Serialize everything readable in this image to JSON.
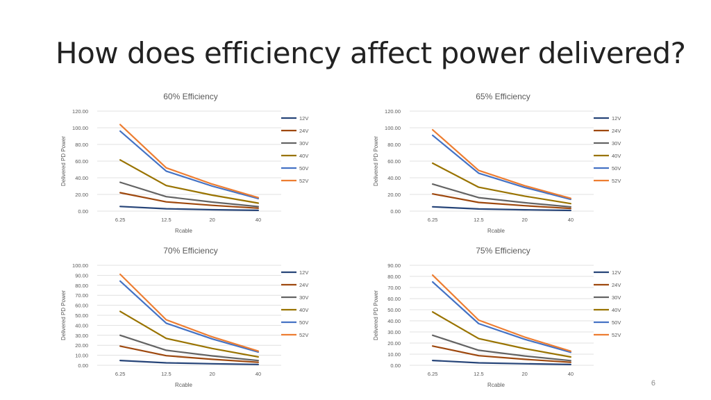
{
  "slide": {
    "title": "How does efficiency affect power delivered?",
    "page_number": "6"
  },
  "chart_data": [
    {
      "type": "line",
      "title": "60% Efficiency",
      "xlabel": "Rcable",
      "ylabel": "Delivered PD Power",
      "categories": [
        "6.25",
        "12.5",
        "20",
        "40"
      ],
      "ylim": [
        0,
        120
      ],
      "ytick_step": 20,
      "ytick_labels": [
        "0.00",
        "20.00",
        "40.00",
        "60.00",
        "80.00",
        "100.00",
        "120.00"
      ],
      "grid": true,
      "legend": "right",
      "series": [
        {
          "name": "12V",
          "color": "#264478",
          "values": [
            5.6,
            2.8,
            1.7,
            0.9
          ]
        },
        {
          "name": "24V",
          "color": "#9E480E",
          "values": [
            22.1,
            11.1,
            6.9,
            3.5
          ]
        },
        {
          "name": "30V",
          "color": "#636363",
          "values": [
            34.6,
            17.3,
            10.8,
            5.4
          ]
        },
        {
          "name": "40V",
          "color": "#997300",
          "values": [
            61.4,
            30.7,
            19.2,
            9.6
          ]
        },
        {
          "name": "50V",
          "color": "#4472C4",
          "values": [
            96.0,
            48.0,
            30.0,
            15.0
          ]
        },
        {
          "name": "52V",
          "color": "#ED7D31",
          "values": [
            103.8,
            51.9,
            32.4,
            16.2
          ]
        }
      ]
    },
    {
      "type": "line",
      "title": "65% Efficiency",
      "xlabel": "Rcable",
      "ylabel": "Delivered PD Power",
      "categories": [
        "6.25",
        "12.5",
        "20",
        "40"
      ],
      "ylim": [
        0,
        120
      ],
      "ytick_step": 20,
      "ytick_labels": [
        "0.00",
        "20.00",
        "40.00",
        "60.00",
        "80.00",
        "100.00",
        "120.00"
      ],
      "grid": true,
      "legend": "right",
      "series": [
        {
          "name": "12V",
          "color": "#264478",
          "values": [
            5.2,
            2.6,
            1.6,
            0.8
          ]
        },
        {
          "name": "24V",
          "color": "#9E480E",
          "values": [
            20.7,
            10.4,
            6.5,
            3.2
          ]
        },
        {
          "name": "30V",
          "color": "#636363",
          "values": [
            32.4,
            16.2,
            10.1,
            5.1
          ]
        },
        {
          "name": "40V",
          "color": "#997300",
          "values": [
            57.5,
            28.7,
            18.0,
            9.0
          ]
        },
        {
          "name": "50V",
          "color": "#4472C4",
          "values": [
            90.9,
            45.5,
            28.4,
            14.2
          ]
        },
        {
          "name": "52V",
          "color": "#ED7D31",
          "values": [
            97.6,
            48.8,
            30.5,
            15.3
          ]
        }
      ]
    },
    {
      "type": "line",
      "title": "70% Efficiency",
      "xlabel": "Rcable",
      "ylabel": "Delivered PD Power",
      "categories": [
        "6.25",
        "12.5",
        "20",
        "40"
      ],
      "ylim": [
        0,
        100
      ],
      "ytick_step": 10,
      "ytick_labels": [
        "0.00",
        "10.00",
        "20.00",
        "30.00",
        "40.00",
        "50.00",
        "60.00",
        "70.00",
        "80.00",
        "90.00",
        "100.00"
      ],
      "grid": true,
      "legend": "right",
      "series": [
        {
          "name": "12V",
          "color": "#264478",
          "values": [
            4.8,
            2.4,
            1.5,
            0.8
          ]
        },
        {
          "name": "24V",
          "color": "#9E480E",
          "values": [
            19.2,
            9.6,
            6.0,
            3.0
          ]
        },
        {
          "name": "30V",
          "color": "#636363",
          "values": [
            30.0,
            15.0,
            9.4,
            4.7
          ]
        },
        {
          "name": "40V",
          "color": "#997300",
          "values": [
            53.9,
            26.9,
            16.8,
            8.4
          ]
        },
        {
          "name": "50V",
          "color": "#4472C4",
          "values": [
            84.2,
            42.1,
            26.3,
            13.2
          ]
        },
        {
          "name": "52V",
          "color": "#ED7D31",
          "values": [
            91.0,
            45.5,
            28.4,
            14.2
          ]
        }
      ]
    },
    {
      "type": "line",
      "title": "75% Efficiency",
      "xlabel": "Rcable",
      "ylabel": "Delivered PD Power",
      "categories": [
        "6.25",
        "12.5",
        "20",
        "40"
      ],
      "ylim": [
        0,
        90
      ],
      "ytick_step": 10,
      "ytick_labels": [
        "0.00",
        "10.00",
        "20.00",
        "30.00",
        "40.00",
        "50.00",
        "60.00",
        "70.00",
        "80.00",
        "90.00"
      ],
      "grid": true,
      "legend": "right",
      "series": [
        {
          "name": "12V",
          "color": "#264478",
          "values": [
            4.3,
            2.2,
            1.4,
            0.7
          ]
        },
        {
          "name": "24V",
          "color": "#9E480E",
          "values": [
            17.3,
            8.6,
            5.4,
            2.7
          ]
        },
        {
          "name": "30V",
          "color": "#636363",
          "values": [
            27.0,
            13.5,
            8.4,
            4.2
          ]
        },
        {
          "name": "40V",
          "color": "#997300",
          "values": [
            48.0,
            24.0,
            15.0,
            7.5
          ]
        },
        {
          "name": "50V",
          "color": "#4472C4",
          "values": [
            75.0,
            37.5,
            23.4,
            11.7
          ]
        },
        {
          "name": "52V",
          "color": "#ED7D31",
          "values": [
            81.1,
            40.6,
            25.4,
            12.7
          ]
        }
      ]
    }
  ]
}
